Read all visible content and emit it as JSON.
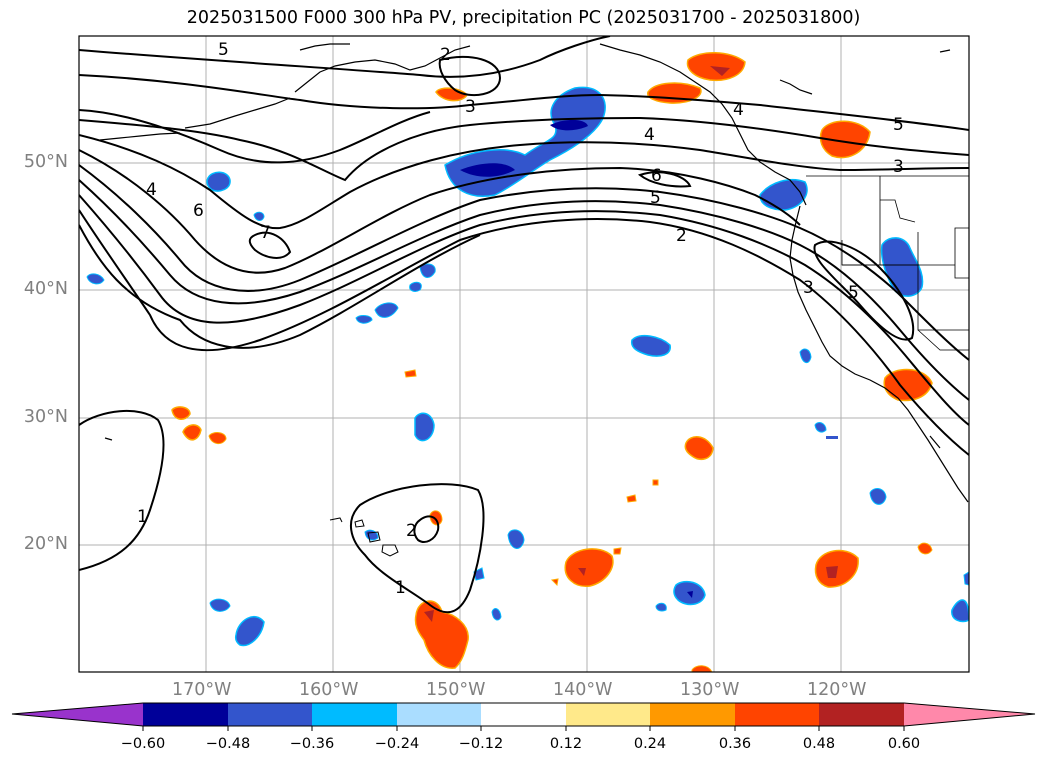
{
  "title": "2025031500 F000 300 hPa PV, precipitation PC (2025031700 - 2025031800)",
  "map": {
    "projection": "PlateCarree",
    "lon_range": [
      -180,
      -110
    ],
    "lat_range": [
      10,
      60
    ],
    "gridlines": true,
    "lat_labels": [
      "50°N",
      "40°N",
      "30°N",
      "20°N"
    ],
    "lon_labels": [
      "170°W",
      "160°W",
      "150°W",
      "140°W",
      "130°W",
      "120°W"
    ],
    "contour_labels": [
      "5",
      "2",
      "3",
      "4",
      "5",
      "3",
      "6",
      "4",
      "6",
      "7",
      "5",
      "2",
      "3",
      "5",
      "4",
      "1",
      "2",
      "1"
    ]
  },
  "colorbar": {
    "tick_labels": [
      "−0.60",
      "−0.48",
      "−0.36",
      "−0.24",
      "−0.12",
      "0.12",
      "0.24",
      "0.36",
      "0.48",
      "0.60"
    ],
    "colors": [
      "#9933cc",
      "#000099",
      "#3355cc",
      "#00bbff",
      "#aaddff",
      "#ffffff",
      "#ffe98a",
      "#ff9900",
      "#ff4400",
      "#b22222",
      "#ff88aa"
    ]
  }
}
